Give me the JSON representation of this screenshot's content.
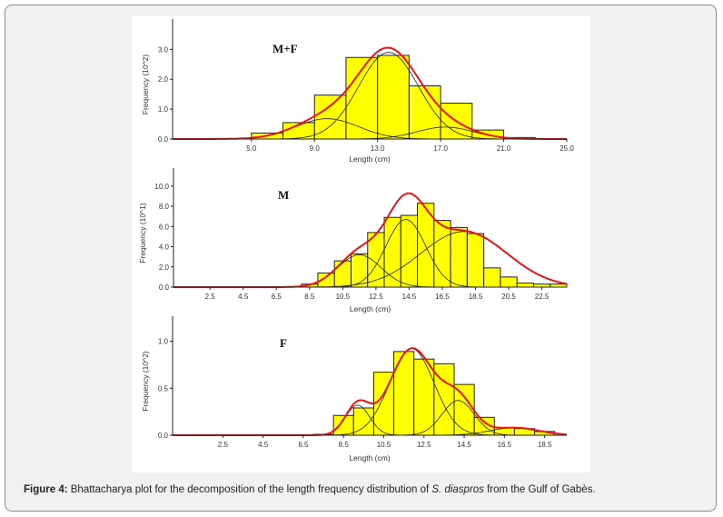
{
  "caption": {
    "label": "Figure 4:",
    "text_before": " Bhattacharya plot for the decomposition of the length frequency distribution of  ",
    "species": "S. diaspros",
    "text_after": " from the Gulf of Gabès."
  },
  "colors": {
    "bar_fill": "#ffff00",
    "bar_stroke": "#222222",
    "total_curve": "#e81414",
    "component_curve": "#222222"
  },
  "chart_data": [
    {
      "type": "bar",
      "title": "M+F",
      "xlabel": "Length (cm)",
      "ylabel": "Frequency (10^2)",
      "xlim": [
        0,
        25
      ],
      "ylim": [
        0,
        3.65
      ],
      "xticks": [
        5,
        9,
        13,
        17,
        21,
        25
      ],
      "xtick_labels": [
        "5.0",
        "9.0",
        "13.0",
        "17.0",
        "21.0",
        "25.0"
      ],
      "yticks": [
        0,
        1,
        2,
        3
      ],
      "ytick_labels": [
        "0.0",
        "1.0",
        "2.0",
        "3.0"
      ],
      "bin_width": 2,
      "bin_starts": [
        5,
        7,
        9,
        11,
        13,
        15,
        17,
        19,
        21
      ],
      "values": [
        0.2,
        0.55,
        1.47,
        2.73,
        2.8,
        1.78,
        1.2,
        0.3,
        0.05
      ],
      "components": [
        {
          "mean": 9.8,
          "sd": 2.0,
          "peak": 0.68
        },
        {
          "mean": 13.7,
          "sd": 1.9,
          "peak": 2.9
        },
        {
          "mean": 17.3,
          "sd": 1.8,
          "peak": 0.4
        }
      ]
    },
    {
      "type": "bar",
      "title": "M",
      "xlabel": "Length (cm)",
      "ylabel": "Frequency (10^1)",
      "xlim": [
        0.3,
        24
      ],
      "ylim": [
        0,
        10.7
      ],
      "xticks": [
        2.5,
        4.5,
        6.5,
        8.5,
        10.5,
        12.5,
        14.5,
        16.5,
        18.5,
        20.5,
        22.5
      ],
      "xtick_labels": [
        "2.5",
        "4.5",
        "6.5",
        "8.5",
        "10.5",
        "12.5",
        "14.5",
        "16.5",
        "18.5",
        "20.5",
        "22.5"
      ],
      "yticks": [
        0,
        2,
        4,
        6,
        8,
        10
      ],
      "ytick_labels": [
        "0.0",
        "2.0",
        "4.0",
        "6.0",
        "8.0",
        "10.0"
      ],
      "bin_width": 1,
      "bin_starts": [
        8,
        9,
        10,
        11,
        12,
        13,
        14,
        15,
        16,
        17,
        18,
        19,
        20,
        21,
        22,
        23
      ],
      "values": [
        0.3,
        1.4,
        2.6,
        3.3,
        5.4,
        6.9,
        7.1,
        8.3,
        6.6,
        5.9,
        5.3,
        1.9,
        1.0,
        0.4,
        0.3,
        0.3
      ],
      "components": [
        {
          "mean": 11.5,
          "sd": 1.3,
          "peak": 3.2
        },
        {
          "mean": 14.3,
          "sd": 1.2,
          "peak": 6.7
        },
        {
          "mean": 17.8,
          "sd": 2.6,
          "peak": 5.5
        }
      ]
    },
    {
      "type": "bar",
      "title": "F",
      "xlabel": "Length (cm)",
      "ylabel": "Frequency (10^2)",
      "xlim": [
        0,
        19.6
      ],
      "ylim": [
        0,
        1.15
      ],
      "xticks": [
        2.5,
        4.5,
        6.5,
        8.5,
        10.5,
        12.5,
        14.5,
        16.5,
        18.5
      ],
      "xtick_labels": [
        "2.5",
        "4.5",
        "6.5",
        "8.5",
        "10.5",
        "12.5",
        "14.5",
        "16.5",
        "18.5"
      ],
      "yticks": [
        0,
        0.5,
        1.0
      ],
      "ytick_labels": [
        "0.0",
        "0.5",
        "1.0"
      ],
      "bin_width": 1,
      "bin_starts": [
        7,
        8,
        9,
        10,
        11,
        12,
        13,
        14,
        15,
        16,
        17,
        18
      ],
      "values": [
        0.01,
        0.21,
        0.29,
        0.67,
        0.89,
        0.81,
        0.76,
        0.54,
        0.19,
        0.08,
        0.07,
        0.04
      ],
      "components": [
        {
          "mean": 9.2,
          "sd": 0.6,
          "peak": 0.32
        },
        {
          "mean": 11.9,
          "sd": 1.1,
          "peak": 0.92
        },
        {
          "mean": 14.2,
          "sd": 0.8,
          "peak": 0.37
        },
        {
          "mean": 17.0,
          "sd": 1.2,
          "peak": 0.08
        }
      ]
    }
  ]
}
